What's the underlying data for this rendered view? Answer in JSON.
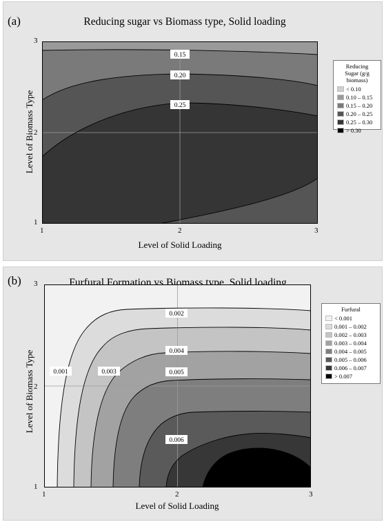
{
  "chart_data": [
    {
      "type": "contour",
      "panel_label": "(a)",
      "title": "Reducing sugar vs Biomass type, Solid loading",
      "xlabel": "Level of Solid Loading",
      "ylabel": "Level of Biomass Type",
      "xticks": [
        "1",
        "2",
        "3"
      ],
      "yticks": [
        "1",
        "2",
        "3"
      ],
      "xlim": [
        1,
        3
      ],
      "ylim": [
        1,
        3
      ],
      "grid": true,
      "legend_title": "Reducing\nSugar (g/g\nbiomass)",
      "legend_position": "right",
      "bands": [
        {
          "label": "<  0.10",
          "color": "#d0d0d0"
        },
        {
          "label": "0.10  –  0.15",
          "color": "#9a9a9a"
        },
        {
          "label": "0.15  –  0.20",
          "color": "#7a7a7a"
        },
        {
          "label": "0.20  –  0.25",
          "color": "#555555"
        },
        {
          "label": "0.25  –  0.30",
          "color": "#353535"
        },
        {
          "label": ">  0.30",
          "color": "#000000"
        }
      ],
      "contour_labels": [
        "0.15",
        "0.20",
        "0.25"
      ]
    },
    {
      "type": "contour",
      "panel_label": "(b)",
      "title": "Furfural Formation vs Biomass type, Solid loading",
      "xlabel": "Level of Solid Loading",
      "ylabel": "Level of Biomass Type",
      "xticks": [
        "1",
        "2",
        "3"
      ],
      "yticks": [
        "1",
        "2",
        "3"
      ],
      "xlim": [
        1,
        3
      ],
      "ylim": [
        1,
        3
      ],
      "grid": true,
      "legend_title": "Furfural",
      "legend_position": "right",
      "bands": [
        {
          "label": "<  0.001",
          "color": "#f2f2f2"
        },
        {
          "label": "0.001  –  0.002",
          "color": "#dcdcdc"
        },
        {
          "label": "0.002  –  0.003",
          "color": "#c4c4c4"
        },
        {
          "label": "0.003  –  0.004",
          "color": "#a2a2a2"
        },
        {
          "label": "0.004  –  0.005",
          "color": "#7e7e7e"
        },
        {
          "label": "0.005  –  0.006",
          "color": "#5a5a5a"
        },
        {
          "label": "0.006  –  0.007",
          "color": "#373737"
        },
        {
          "label": ">  0.007",
          "color": "#000000"
        }
      ],
      "contour_labels": [
        "0.001",
        "0.002",
        "0.003",
        "0.004",
        "0.005",
        "0.006"
      ]
    }
  ]
}
